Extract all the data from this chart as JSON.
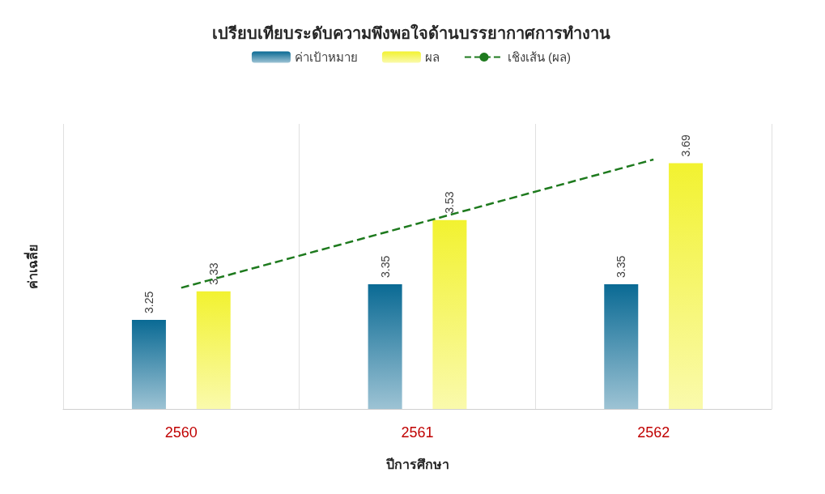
{
  "chart_data": {
    "type": "bar",
    "title": "เปรียบเทียบระดับความพึงพอใจด้านบรรยากาศการทำงาน",
    "xlabel": "ปีการศึกษา",
    "ylabel": "ค่าเฉลี่ย",
    "categories": [
      "2560",
      "2561",
      "2562"
    ],
    "series": [
      {
        "name": "ค่าเป้าหมาย",
        "color": "#0a6a94",
        "values": [
          3.25,
          3.35,
          3.35
        ],
        "value_labels": [
          "3.25",
          "3.35",
          "3.35"
        ]
      },
      {
        "name": "ผล",
        "color": "#f2f230",
        "values": [
          3.33,
          3.53,
          3.69
        ],
        "value_labels": [
          "3.33",
          "3.53",
          "3.69"
        ]
      },
      {
        "name": "เชิงเส้น (ผล)",
        "type": "line",
        "color": "#1e7a1e",
        "line_style": "dashed",
        "marker": "none",
        "values": [
          3.34,
          3.52,
          3.7
        ]
      }
    ],
    "ylim": [
      3,
      3.8
    ],
    "tick_labels": "x",
    "grid": "x",
    "legend": "top"
  }
}
